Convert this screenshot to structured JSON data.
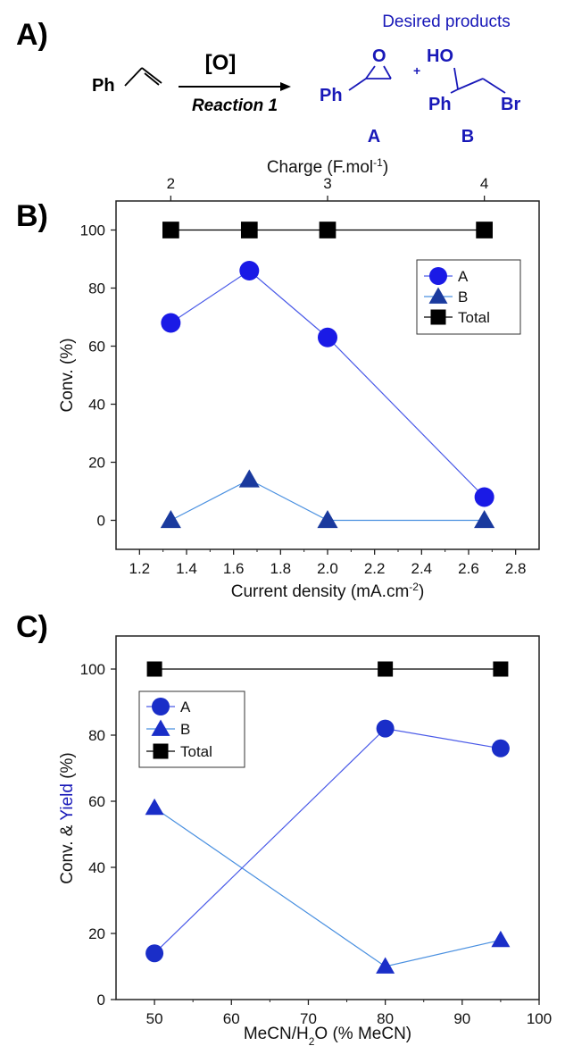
{
  "scheme": {
    "panel": "A)",
    "reactant": "Ph",
    "oxidant": "[O]",
    "reaction": "Reaction 1",
    "header": "Desired products",
    "product_a_ph": "Ph",
    "product_a_o": "O",
    "plus": "+",
    "product_b_ho": "HO",
    "product_b_ph": "Ph",
    "product_b_br": "Br",
    "label_a": "A",
    "label_b": "B"
  },
  "chart_data": [
    {
      "panel": "B)",
      "type": "line",
      "xlabel": "Current density (mA.cm",
      "xlabel_sup": "-2",
      "xlabel_tail": ")",
      "x2label": "Charge (F.mol",
      "x2label_sup": "-1",
      "x2label_tail": ")",
      "ylabel": "Conv. (%)",
      "xlim": [
        1.1,
        2.9
      ],
      "ylim": [
        -10,
        110
      ],
      "xticks": [
        1.2,
        1.4,
        1.6,
        1.8,
        2.0,
        2.2,
        2.4,
        2.6,
        2.8
      ],
      "xtick_labels": [
        "1.2",
        "1.4",
        "1.6",
        "1.8",
        "2.0",
        "2.2",
        "2.4",
        "2.6",
        "2.8"
      ],
      "x2ticks": [
        1.333,
        2.0,
        2.667
      ],
      "x2tick_labels": [
        "2",
        "3",
        "4"
      ],
      "yticks": [
        0,
        20,
        40,
        60,
        80,
        100
      ],
      "ytick_labels": [
        "0",
        "20",
        "40",
        "60",
        "80",
        "100"
      ],
      "legend_position": "top-right",
      "grid": false,
      "series": [
        {
          "name": "A",
          "marker": "circle",
          "color": "#1a1ae6",
          "line_color": "#4a5ae8",
          "x": [
            1.333,
            1.667,
            2.0,
            2.667
          ],
          "y": [
            68,
            86,
            63,
            8
          ]
        },
        {
          "name": "B",
          "marker": "triangle",
          "color": "#1a3a9e",
          "line_color": "#4a90e0",
          "x": [
            1.333,
            1.667,
            2.0,
            2.667
          ],
          "y": [
            0,
            14,
            0,
            0
          ]
        },
        {
          "name": "Total",
          "marker": "square",
          "color": "#000000",
          "line_color": "#000000",
          "x": [
            1.333,
            1.667,
            2.0,
            2.667
          ],
          "y": [
            100,
            100,
            100,
            100
          ]
        }
      ]
    },
    {
      "panel": "C)",
      "type": "line",
      "xlabel": "MeCN/H",
      "xlabel_sub": "2",
      "xlabel_tail": "O (% MeCN)",
      "ylabel": "Conv. & ",
      "ylabel_colored": "Yield",
      "ylabel_tail": " (%)",
      "ylabel_colored_color": "#1818b8",
      "xlim": [
        45,
        100
      ],
      "ylim": [
        0,
        110
      ],
      "xticks": [
        50,
        60,
        70,
        80,
        90,
        100
      ],
      "xtick_labels": [
        "50",
        "60",
        "70",
        "80",
        "90",
        "100"
      ],
      "yticks": [
        0,
        20,
        40,
        60,
        80,
        100
      ],
      "ytick_labels": [
        "0",
        "20",
        "40",
        "60",
        "80",
        "100"
      ],
      "legend_position": "top-left",
      "grid": false,
      "series": [
        {
          "name": "A",
          "marker": "circle",
          "color": "#1a2ec8",
          "line_color": "#4a5ae8",
          "x": [
            50,
            80,
            95
          ],
          "y": [
            14,
            82,
            76
          ]
        },
        {
          "name": "B",
          "marker": "triangle",
          "color": "#1a2ec8",
          "line_color": "#4a90e0",
          "x": [
            50,
            80,
            95
          ],
          "y": [
            58,
            10,
            18
          ]
        },
        {
          "name": "Total",
          "marker": "square",
          "color": "#000000",
          "line_color": "#000000",
          "x": [
            50,
            80,
            95
          ],
          "y": [
            100,
            100,
            100
          ]
        }
      ]
    }
  ]
}
